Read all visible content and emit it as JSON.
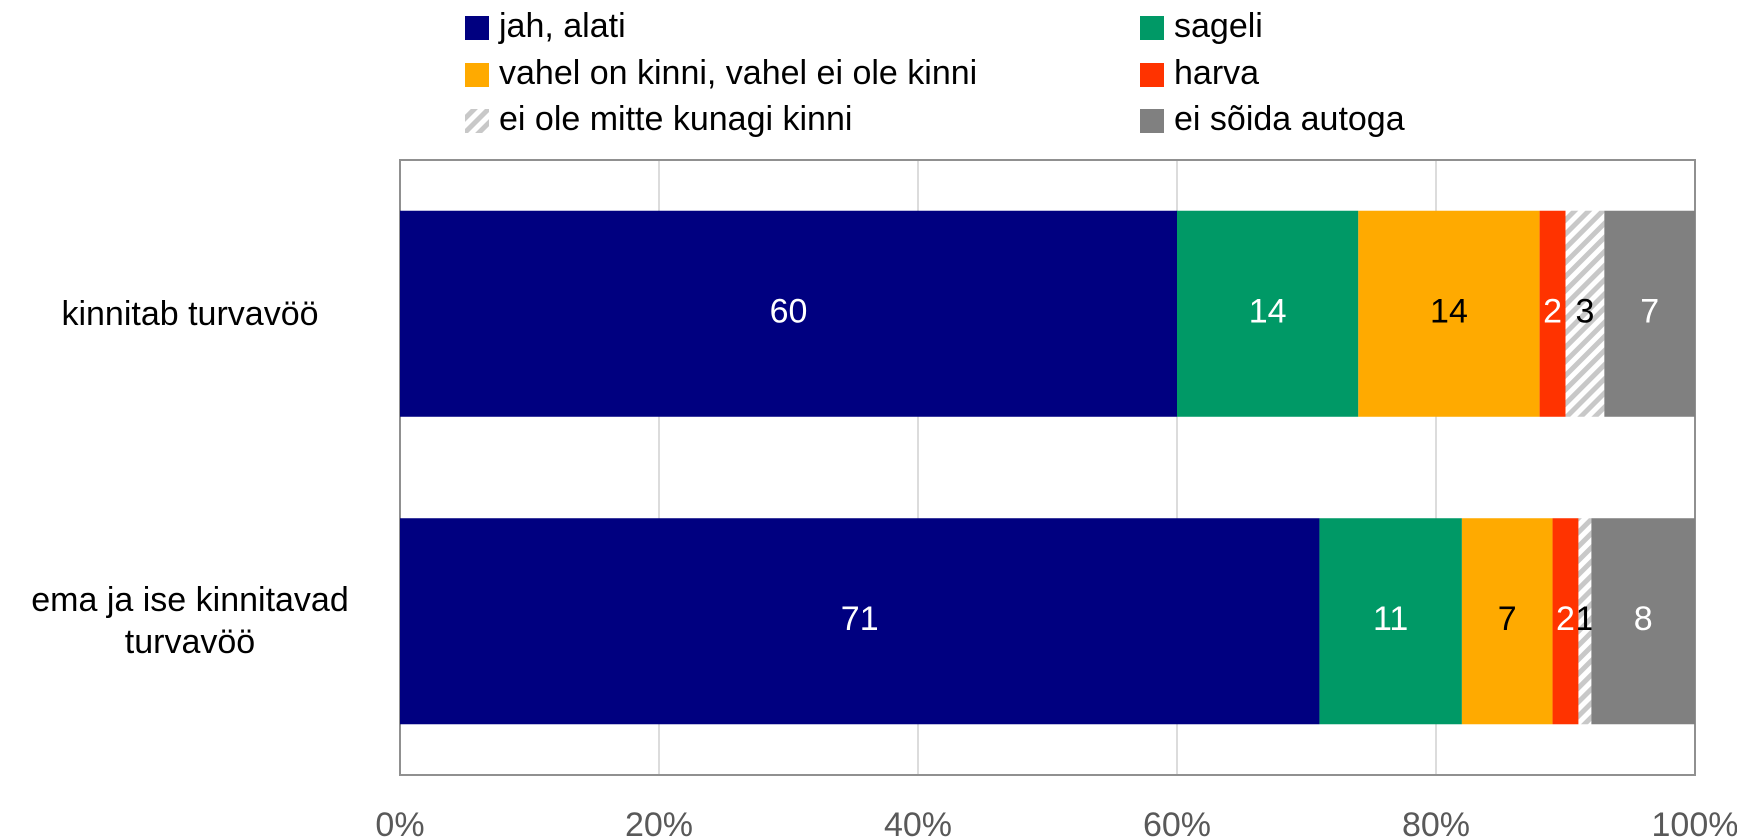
{
  "chart_data": {
    "type": "stacked-barh",
    "categories": [
      "kinnitab turvavöö",
      "ema ja ise kinnitavad turvavöö"
    ],
    "series": [
      {
        "name": "jah, alati",
        "color": "#000080",
        "values": [
          60,
          71
        ]
      },
      {
        "name": "sageli",
        "color": "#009966",
        "values": [
          14,
          11
        ]
      },
      {
        "name": "vahel on kinni, vahel ei ole kinni",
        "color": "#ffaa00",
        "values": [
          14,
          7
        ]
      },
      {
        "name": "harva",
        "color": "#ff3300",
        "values": [
          2,
          2
        ]
      },
      {
        "name": "ei ole mitte kunagi kinni",
        "color": "#c8c8c8",
        "pattern": "hatch",
        "values": [
          3,
          1
        ]
      },
      {
        "name": "ei sõida autoga",
        "color": "#808080",
        "values": [
          7,
          8
        ]
      }
    ],
    "xlim": [
      0,
      100
    ],
    "xticks": [
      {
        "value": 0,
        "label": "0%"
      },
      {
        "value": 20,
        "label": "20%"
      },
      {
        "value": 40,
        "label": "40%"
      },
      {
        "value": 60,
        "label": "60%"
      },
      {
        "value": 80,
        "label": "80%"
      },
      {
        "value": 100,
        "label": "100%"
      }
    ],
    "grid": true,
    "legend": "top"
  }
}
